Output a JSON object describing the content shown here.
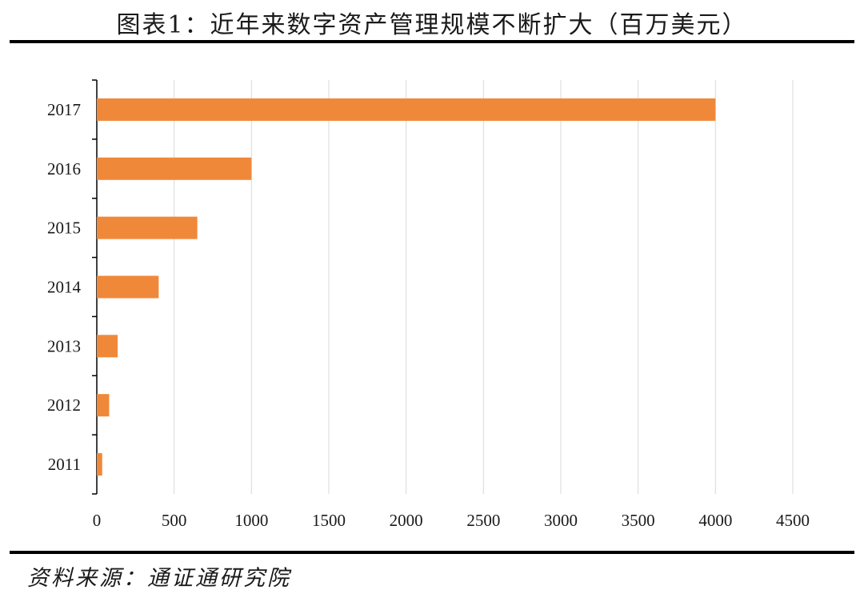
{
  "title": "图表1：近年来数字资产管理规模不断扩大（百万美元）",
  "source": "资料来源：通证通研究院",
  "chart_data": {
    "type": "bar",
    "orientation": "horizontal",
    "title": "图表1：近年来数字资产管理规模不断扩大（百万美元）",
    "categories": [
      "2011",
      "2012",
      "2013",
      "2014",
      "2015",
      "2016",
      "2017"
    ],
    "values": [
      35,
      80,
      135,
      400,
      650,
      1000,
      4000
    ],
    "xlim": [
      0,
      4500
    ],
    "xticks": [
      0,
      500,
      1000,
      1500,
      2000,
      2500,
      3000,
      3500,
      4000,
      4500
    ],
    "grid": "vertical",
    "bar_color": "#F0883A",
    "legend": "none"
  }
}
